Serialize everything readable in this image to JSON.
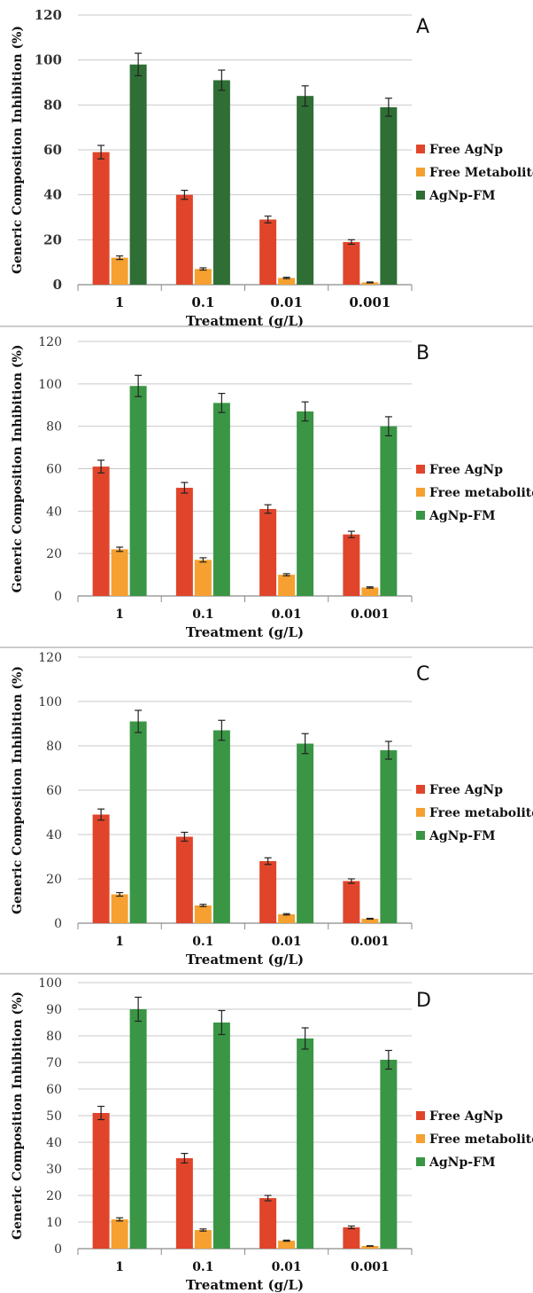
{
  "chart_data": [
    {
      "type": "bar",
      "panel": "A",
      "categories": [
        "1",
        "0.1",
        "0.01",
        "0.001"
      ],
      "xlabel": "Treatment (g/L)",
      "ylabel": "Generic Composition Inhibition (%)",
      "ylim": [
        0,
        120
      ],
      "yticks": [
        0,
        20,
        40,
        60,
        80,
        100,
        120
      ],
      "grid": true,
      "legend_position": "right",
      "series": [
        {
          "name": "Free AgNp",
          "color": "#e0452b",
          "values": [
            59,
            40,
            29,
            19
          ],
          "errors": [
            3,
            2,
            1.5,
            1
          ]
        },
        {
          "name": "Free Metabolites",
          "color": "#f5a030",
          "values": [
            12,
            7,
            3,
            1
          ],
          "errors": [
            0.8,
            0.5,
            0.3,
            0.2
          ]
        },
        {
          "name": "AgNp-FM",
          "color": "#2f6e35",
          "values": [
            98,
            91,
            84,
            79
          ],
          "errors": [
            5,
            4.5,
            4.5,
            4
          ]
        }
      ]
    },
    {
      "type": "bar",
      "panel": "B",
      "categories": [
        "1",
        "0.1",
        "0.01",
        "0.001"
      ],
      "xlabel": "Treatment (g/L)",
      "ylabel": "Generic Composition Inhibition (%)",
      "ylim": [
        0,
        120
      ],
      "yticks": [
        0,
        20,
        40,
        60,
        80,
        100,
        120
      ],
      "grid": true,
      "legend_position": "right",
      "series": [
        {
          "name": "Free AgNp",
          "color": "#e0452b",
          "values": [
            61,
            51,
            41,
            29
          ],
          "errors": [
            3,
            2.5,
            2,
            1.5
          ]
        },
        {
          "name": "Free metabolites",
          "color": "#f5a030",
          "values": [
            22,
            17,
            10,
            4
          ],
          "errors": [
            1,
            1,
            0.5,
            0.3
          ]
        },
        {
          "name": "AgNp-FM",
          "color": "#3a9645",
          "values": [
            99,
            91,
            87,
            80
          ],
          "errors": [
            5,
            4.5,
            4.5,
            4.5
          ]
        }
      ]
    },
    {
      "type": "bar",
      "panel": "C",
      "categories": [
        "1",
        "0.1",
        "0.01",
        "0.001"
      ],
      "xlabel": "Treatment (g/L)",
      "ylabel": "Generic Composition Inhibition (%)",
      "ylim": [
        0,
        120
      ],
      "yticks": [
        0,
        20,
        40,
        60,
        80,
        100,
        120
      ],
      "grid": true,
      "legend_position": "right",
      "series": [
        {
          "name": "Free AgNp",
          "color": "#e0452b",
          "values": [
            49,
            39,
            28,
            19
          ],
          "errors": [
            2.5,
            2,
            1.5,
            1
          ]
        },
        {
          "name": "Free metabolites",
          "color": "#f5a030",
          "values": [
            13,
            8,
            4,
            2
          ],
          "errors": [
            0.8,
            0.5,
            0.3,
            0.2
          ]
        },
        {
          "name": "AgNp-FM",
          "color": "#3a9645",
          "values": [
            91,
            87,
            81,
            78
          ],
          "errors": [
            5,
            4.5,
            4.5,
            4
          ]
        }
      ]
    },
    {
      "type": "bar",
      "panel": "D",
      "categories": [
        "1",
        "0.1",
        "0.01",
        "0.001"
      ],
      "xlabel": "Treatment (g/L)",
      "ylabel": "Generic Composition Inhibition (%)",
      "ylim": [
        0,
        100
      ],
      "yticks": [
        0,
        10,
        20,
        30,
        40,
        50,
        60,
        70,
        80,
        90,
        100
      ],
      "grid": true,
      "legend_position": "right",
      "series": [
        {
          "name": "Free AgNp",
          "color": "#e0452b",
          "values": [
            51,
            34,
            19,
            8
          ],
          "errors": [
            2.5,
            1.8,
            1,
            0.5
          ]
        },
        {
          "name": "Free metabolites",
          "color": "#f5a030",
          "values": [
            11,
            7,
            3,
            1
          ],
          "errors": [
            0.6,
            0.4,
            0.2,
            0.1
          ]
        },
        {
          "name": "AgNp-FM",
          "color": "#3a9645",
          "values": [
            90,
            85,
            79,
            71
          ],
          "errors": [
            4.5,
            4.5,
            4,
            3.5
          ]
        }
      ]
    }
  ]
}
